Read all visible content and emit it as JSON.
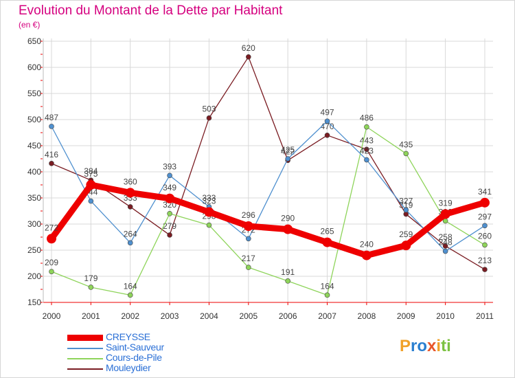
{
  "title": "Evolution du Montant de la Dette par Habitant",
  "unit": "(en €)",
  "logo": {
    "text": "Proxiti",
    "letters": [
      "P",
      "r",
      "o",
      "x",
      "i",
      "t",
      "i"
    ],
    "colors": [
      "#f0a12a",
      "#2a7fd0",
      "#2a7fd0",
      "#e8562a",
      "#f0a12a",
      "#7cc242",
      "#7cc242"
    ]
  },
  "chart_data": {
    "type": "line",
    "title": "Evolution du Montant de la Dette par Habitant",
    "ylabel": "(en €)",
    "ylim": [
      150,
      650
    ],
    "yticks": [
      150,
      200,
      250,
      300,
      350,
      400,
      450,
      500,
      550,
      600,
      650
    ],
    "categories": [
      "2000",
      "2001",
      "2002",
      "2003",
      "2004",
      "2005",
      "2006",
      "2007",
      "2008",
      "2009",
      "2010",
      "2011"
    ],
    "series": [
      {
        "name": "Mouleydier",
        "color": "#7a1c22",
        "values": [
          416,
          384,
          333,
          279,
          503,
          620,
          422,
          470,
          443,
          319,
          258,
          213
        ]
      },
      {
        "name": "Cours-de-Pile",
        "color": "#8ed45a",
        "values": [
          209,
          179,
          164,
          320,
          298,
          217,
          191,
          164,
          486,
          435,
          306,
          260
        ]
      },
      {
        "name": "Saint-Sauveur",
        "color": "#4f90cf",
        "values": [
          487,
          344,
          264,
          393,
          333,
          272,
          425,
          497,
          423,
          327,
          248,
          297
        ]
      },
      {
        "name": "CREYSSE",
        "color": "#ee0000",
        "values": [
          272,
          375,
          360,
          349,
          323,
          296,
          290,
          265,
          240,
          259,
          319,
          341
        ]
      }
    ],
    "legend": [
      "CREYSSE",
      "Saint-Sauveur",
      "Cours-de-Pile",
      "Mouleydier"
    ],
    "legend_position": "bottom-left"
  }
}
